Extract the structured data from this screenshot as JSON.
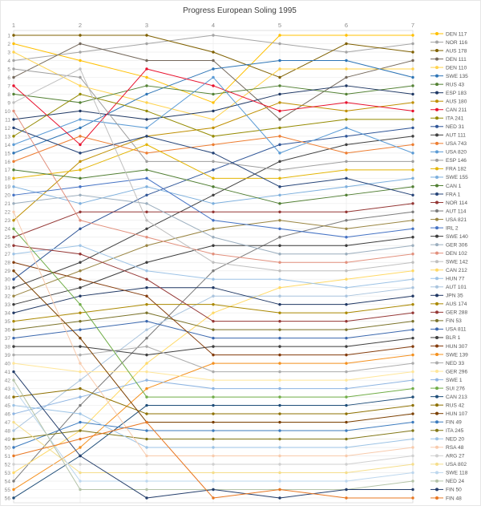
{
  "title": "Progress European Soling 1995",
  "frame_color": "#e6e6e6",
  "grid_color": "#ececec",
  "plot_border_color": "#d9d9d9",
  "tick_label_color": "#8a8a8a",
  "title_color": "#404040",
  "legend_text_color": "#555555",
  "chart_data": {
    "type": "line",
    "subtype": "bump-rank-progress",
    "title": "Progress European Soling 1995",
    "xlabel": "",
    "ylabel": "",
    "x": [
      1,
      2,
      3,
      4,
      5,
      6,
      7
    ],
    "ylim": [
      1,
      56
    ],
    "y_tick_min": 1,
    "y_tick_max": 56,
    "grid": true,
    "legend_position": "right",
    "series": [
      {
        "name": "DEN 117",
        "color": "#FFC000",
        "values": [
          2,
          4,
          6,
          9,
          1,
          1,
          1
        ]
      },
      {
        "name": "NOR 116",
        "color": "#A5A5A5",
        "values": [
          4,
          3,
          2,
          1,
          2,
          3,
          2
        ]
      },
      {
        "name": "AUS 178",
        "color": "#7F6000",
        "values": [
          1,
          1,
          1,
          3,
          6,
          2,
          3
        ]
      },
      {
        "name": "DEN 111",
        "color": "#75695C",
        "values": [
          6,
          2,
          4,
          4,
          11,
          6,
          4
        ]
      },
      {
        "name": "DEN 110",
        "color": "#FFD34D",
        "values": [
          3,
          7,
          9,
          11,
          5,
          5,
          5
        ]
      },
      {
        "name": "SWE 135",
        "color": "#2E75B6",
        "values": [
          15,
          12,
          8,
          5,
          4,
          4,
          6
        ]
      },
      {
        "name": "RUS 43",
        "color": "#548235",
        "values": [
          8,
          9,
          7,
          8,
          7,
          8,
          7
        ]
      },
      {
        "name": "ESP 183",
        "color": "#1F3864",
        "values": [
          11,
          10,
          11,
          10,
          8,
          7,
          8
        ]
      },
      {
        "name": "AUS 180",
        "color": "#BF8F00",
        "values": [
          23,
          16,
          13,
          12,
          9,
          10,
          9
        ]
      },
      {
        "name": "CAN 211",
        "color": "#E8112D",
        "values": [
          7,
          14,
          5,
          7,
          10,
          9,
          10
        ]
      },
      {
        "name": "ITA 241",
        "color": "#948A00",
        "values": [
          13,
          8,
          10,
          13,
          12,
          11,
          11
        ]
      },
      {
        "name": "NED 31",
        "color": "#2F5597",
        "values": [
          30,
          24,
          20,
          17,
          14,
          13,
          12
        ]
      },
      {
        "name": "AUT 111",
        "color": "#404040",
        "values": [
          31,
          28,
          24,
          20,
          16,
          14,
          13
        ]
      },
      {
        "name": "USA 743",
        "color": "#ED7D31",
        "values": [
          16,
          13,
          15,
          14,
          13,
          15,
          14
        ]
      },
      {
        "name": "USA 820",
        "color": "#5B9BD5",
        "values": [
          14,
          11,
          12,
          6,
          15,
          12,
          15
        ]
      },
      {
        "name": "ESP 146",
        "color": "#9E9E9E",
        "values": [
          5,
          6,
          16,
          16,
          17,
          16,
          16
        ]
      },
      {
        "name": "FRA 182",
        "color": "#E3B505",
        "values": [
          18,
          17,
          14,
          18,
          18,
          17,
          17
        ]
      },
      {
        "name": "SWE 155",
        "color": "#7CAFDD",
        "values": [
          19,
          21,
          19,
          21,
          20,
          19,
          18
        ]
      },
      {
        "name": "CAN 1",
        "color": "#507E32",
        "values": [
          17,
          18,
          17,
          19,
          21,
          20,
          19
        ]
      },
      {
        "name": "FRA 1",
        "color": "#264478",
        "values": [
          12,
          15,
          13,
          15,
          19,
          18,
          20
        ]
      },
      {
        "name": "NOR 114",
        "color": "#943634",
        "values": [
          25,
          22,
          22,
          22,
          22,
          22,
          21
        ]
      },
      {
        "name": "AUT 114",
        "color": "#7B7B7B",
        "values": [
          54,
          45,
          37,
          29,
          25,
          23,
          22
        ]
      },
      {
        "name": "USA 821",
        "color": "#998542",
        "values": [
          32,
          29,
          26,
          24,
          23,
          24,
          23
        ]
      },
      {
        "name": "IRL 2",
        "color": "#4472C4",
        "values": [
          20,
          19,
          18,
          23,
          24,
          25,
          24
        ]
      },
      {
        "name": "SWE 140",
        "color": "#3B3B3B",
        "values": [
          33,
          31,
          28,
          26,
          26,
          26,
          25
        ]
      },
      {
        "name": "GER 306",
        "color": "#9BAEBE",
        "values": [
          21,
          20,
          21,
          25,
          27,
          27,
          26
        ]
      },
      {
        "name": "DEN 102",
        "color": "#E2907D",
        "values": [
          10,
          23,
          25,
          27,
          28,
          28,
          27
        ]
      },
      {
        "name": "SWE 142",
        "color": "#BFBFBF",
        "values": [
          9,
          5,
          23,
          28,
          29,
          29,
          28
        ]
      },
      {
        "name": "CAN 212",
        "color": "#FFD966",
        "values": [
          53,
          48,
          40,
          34,
          31,
          30,
          29
        ]
      },
      {
        "name": "HUN 77",
        "color": "#9DC3E6",
        "values": [
          27,
          26,
          29,
          30,
          30,
          31,
          30
        ]
      },
      {
        "name": "AUT 101",
        "color": "#A9C4DE",
        "values": [
          48,
          42,
          36,
          32,
          32,
          32,
          31
        ]
      },
      {
        "name": "JPN 35",
        "color": "#203864",
        "values": [
          34,
          32,
          31,
          31,
          33,
          33,
          32
        ]
      },
      {
        "name": "AUS 174",
        "color": "#AA8800",
        "values": [
          35,
          34,
          33,
          33,
          34,
          34,
          33
        ]
      },
      {
        "name": "GER 288",
        "color": "#953735",
        "values": [
          26,
          27,
          30,
          35,
          35,
          35,
          34
        ]
      },
      {
        "name": "FIN 53",
        "color": "#7A7229",
        "values": [
          36,
          35,
          34,
          36,
          36,
          36,
          35
        ]
      },
      {
        "name": "USA 811",
        "color": "#3A67AD",
        "values": [
          37,
          36,
          35,
          37,
          37,
          37,
          36
        ]
      },
      {
        "name": "BLR 1",
        "color": "#3F3F3F",
        "values": [
          38,
          38,
          39,
          38,
          38,
          38,
          37
        ]
      },
      {
        "name": "HUN 307",
        "color": "#843C0C",
        "values": [
          28,
          30,
          32,
          39,
          39,
          39,
          38
        ]
      },
      {
        "name": "SWE 139",
        "color": "#F4901E",
        "values": [
          55,
          50,
          43,
          40,
          40,
          40,
          39
        ]
      },
      {
        "name": "NED 33",
        "color": "#ACACAC",
        "values": [
          39,
          39,
          38,
          41,
          41,
          41,
          40
        ]
      },
      {
        "name": "GER 296",
        "color": "#FFE699",
        "values": [
          40,
          41,
          41,
          42,
          42,
          42,
          41
        ]
      },
      {
        "name": "SWE 1",
        "color": "#8DB4E2",
        "values": [
          46,
          44,
          42,
          43,
          43,
          43,
          42
        ]
      },
      {
        "name": "SUI 276",
        "color": "#70AD47",
        "values": [
          24,
          33,
          44,
          44,
          44,
          44,
          43
        ]
      },
      {
        "name": "CAN 213",
        "color": "#1F4E79",
        "values": [
          56,
          51,
          45,
          45,
          45,
          45,
          44
        ]
      },
      {
        "name": "RUS 42",
        "color": "#8E7000",
        "values": [
          44,
          43,
          46,
          46,
          46,
          46,
          45
        ]
      },
      {
        "name": "HUN 107",
        "color": "#7B3F00",
        "values": [
          29,
          37,
          47,
          47,
          47,
          47,
          46
        ]
      },
      {
        "name": "FIN 49",
        "color": "#3C7BBE",
        "values": [
          50,
          47,
          48,
          48,
          48,
          48,
          47
        ]
      },
      {
        "name": "ITA 245",
        "color": "#827717",
        "values": [
          49,
          48,
          49,
          49,
          49,
          49,
          48
        ]
      },
      {
        "name": "NED 20",
        "color": "#9CC3E5",
        "values": [
          45,
          46,
          50,
          50,
          50,
          50,
          49
        ]
      },
      {
        "name": "RSA 48",
        "color": "#F8CBAD",
        "values": [
          22,
          40,
          51,
          51,
          51,
          51,
          50
        ]
      },
      {
        "name": "ARG 27",
        "color": "#D0D0D0",
        "values": [
          52,
          52,
          52,
          52,
          52,
          52,
          51
        ]
      },
      {
        "name": "USA 802",
        "color": "#F5DE8C",
        "values": [
          47,
          53,
          53,
          53,
          53,
          53,
          52
        ]
      },
      {
        "name": "SWE 118",
        "color": "#BDD7EE",
        "values": [
          43,
          54,
          54,
          54,
          54,
          54,
          53
        ]
      },
      {
        "name": "NED 24",
        "color": "#B5C4A9",
        "values": [
          42,
          55,
          55,
          55,
          55,
          55,
          54
        ]
      },
      {
        "name": "FIN 50",
        "color": "#243E6B",
        "values": [
          41,
          51,
          56,
          55,
          56,
          55,
          55
        ]
      },
      {
        "name": "FIN 48",
        "color": "#E87722",
        "values": [
          51,
          49,
          47,
          56,
          55,
          56,
          56
        ]
      }
    ]
  }
}
